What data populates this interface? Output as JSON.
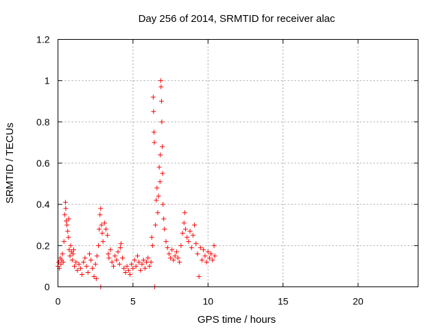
{
  "chart_data": {
    "type": "scatter",
    "title": "Day 256 of 2014, SRMTID for receiver alac",
    "xlabel": "GPS time / hours",
    "ylabel": "SRMTID / TECUs",
    "xlim": [
      0,
      24
    ],
    "ylim": [
      0,
      1.2
    ],
    "xticks": [
      0,
      5,
      10,
      15,
      20
    ],
    "xtick_labels": [
      "0",
      "5",
      "10",
      "15",
      "20"
    ],
    "yticks": [
      0,
      0.2,
      0.4,
      0.6,
      0.8,
      1.0,
      1.2
    ],
    "ytick_labels": [
      "0",
      "0.2",
      "0.4",
      "0.6",
      "0.8",
      "1",
      "1.2"
    ],
    "grid": true,
    "marker": "+",
    "color": "#ff0000",
    "series": [
      {
        "name": "SRMTID",
        "points": [
          [
            0.0,
            0.1
          ],
          [
            0.05,
            0.12
          ],
          [
            0.1,
            0.09
          ],
          [
            0.15,
            0.14
          ],
          [
            0.2,
            0.11
          ],
          [
            0.25,
            0.13
          ],
          [
            0.3,
            0.16
          ],
          [
            0.35,
            0.12
          ],
          [
            0.4,
            0.22
          ],
          [
            0.45,
            0.35
          ],
          [
            0.5,
            0.41
          ],
          [
            0.52,
            0.38
          ],
          [
            0.55,
            0.32
          ],
          [
            0.6,
            0.3
          ],
          [
            0.65,
            0.27
          ],
          [
            0.7,
            0.24
          ],
          [
            0.72,
            0.33
          ],
          [
            0.75,
            0.18
          ],
          [
            0.8,
            0.15
          ],
          [
            0.85,
            0.2
          ],
          [
            0.9,
            0.17
          ],
          [
            0.95,
            0.13
          ],
          [
            1.0,
            0.16
          ],
          [
            1.05,
            0.18
          ],
          [
            1.1,
            0.1
          ],
          [
            1.2,
            0.12
          ],
          [
            1.3,
            0.08
          ],
          [
            1.4,
            0.11
          ],
          [
            1.5,
            0.09
          ],
          [
            1.6,
            0.06
          ],
          [
            1.7,
            0.12
          ],
          [
            1.8,
            0.14
          ],
          [
            1.9,
            0.1
          ],
          [
            2.0,
            0.07
          ],
          [
            2.1,
            0.16
          ],
          [
            2.2,
            0.13
          ],
          [
            2.3,
            0.09
          ],
          [
            2.4,
            0.05
          ],
          [
            2.5,
            0.11
          ],
          [
            2.55,
            0.04
          ],
          [
            2.6,
            0.15
          ],
          [
            2.7,
            0.2
          ],
          [
            2.75,
            0.28
          ],
          [
            2.8,
            0.35
          ],
          [
            2.85,
            0.38
          ],
          [
            2.9,
            0.3
          ],
          [
            2.95,
            0.26
          ],
          [
            2.85,
            0.0
          ],
          [
            3.0,
            0.22
          ],
          [
            3.1,
            0.31
          ],
          [
            3.2,
            0.28
          ],
          [
            3.3,
            0.25
          ],
          [
            3.35,
            0.16
          ],
          [
            3.4,
            0.14
          ],
          [
            3.5,
            0.18
          ],
          [
            3.6,
            0.12
          ],
          [
            3.7,
            0.1
          ],
          [
            3.8,
            0.15
          ],
          [
            3.9,
            0.13
          ],
          [
            4.0,
            0.17
          ],
          [
            4.1,
            0.11
          ],
          [
            4.15,
            0.19
          ],
          [
            4.2,
            0.21
          ],
          [
            4.3,
            0.14
          ],
          [
            4.4,
            0.09
          ],
          [
            4.5,
            0.07
          ],
          [
            4.6,
            0.1
          ],
          [
            4.7,
            0.08
          ],
          [
            4.8,
            0.06
          ],
          [
            4.9,
            0.11
          ],
          [
            5.0,
            0.09
          ],
          [
            5.1,
            0.13
          ],
          [
            5.2,
            0.1
          ],
          [
            5.3,
            0.15
          ],
          [
            5.4,
            0.12
          ],
          [
            5.5,
            0.08
          ],
          [
            5.6,
            0.11
          ],
          [
            5.7,
            0.13
          ],
          [
            5.8,
            0.09
          ],
          [
            5.9,
            0.12
          ],
          [
            6.0,
            0.14
          ],
          [
            6.1,
            0.1
          ],
          [
            6.2,
            0.12
          ],
          [
            6.25,
            0.24
          ],
          [
            6.3,
            0.2
          ],
          [
            6.35,
            0.92
          ],
          [
            6.37,
            0.85
          ],
          [
            6.4,
            0.75
          ],
          [
            6.42,
            0.7
          ],
          [
            6.45,
            0.0
          ],
          [
            6.5,
            0.3
          ],
          [
            6.55,
            0.42
          ],
          [
            6.6,
            0.48
          ],
          [
            6.65,
            0.36
          ],
          [
            6.7,
            0.44
          ],
          [
            6.75,
            0.58
          ],
          [
            6.8,
            0.51
          ],
          [
            6.82,
            0.64
          ],
          [
            6.85,
            1.0
          ],
          [
            6.87,
            0.97
          ],
          [
            6.9,
            0.9
          ],
          [
            6.92,
            0.8
          ],
          [
            6.95,
            0.68
          ],
          [
            6.97,
            0.55
          ],
          [
            7.0,
            0.4
          ],
          [
            7.05,
            0.33
          ],
          [
            7.1,
            0.28
          ],
          [
            7.2,
            0.22
          ],
          [
            7.3,
            0.19
          ],
          [
            7.4,
            0.16
          ],
          [
            7.5,
            0.14
          ],
          [
            7.6,
            0.18
          ],
          [
            7.7,
            0.13
          ],
          [
            7.8,
            0.15
          ],
          [
            7.9,
            0.17
          ],
          [
            8.0,
            0.14
          ],
          [
            8.1,
            0.12
          ],
          [
            8.2,
            0.2
          ],
          [
            8.3,
            0.26
          ],
          [
            8.4,
            0.31
          ],
          [
            8.45,
            0.36
          ],
          [
            8.5,
            0.28
          ],
          [
            8.6,
            0.24
          ],
          [
            8.7,
            0.22
          ],
          [
            8.8,
            0.27
          ],
          [
            8.9,
            0.19
          ],
          [
            9.0,
            0.25
          ],
          [
            9.1,
            0.3
          ],
          [
            9.2,
            0.21
          ],
          [
            9.3,
            0.16
          ],
          [
            9.4,
            0.05
          ],
          [
            9.5,
            0.19
          ],
          [
            9.6,
            0.13
          ],
          [
            9.7,
            0.18
          ],
          [
            9.8,
            0.15
          ],
          [
            9.9,
            0.12
          ],
          [
            10.0,
            0.17
          ],
          [
            10.1,
            0.14
          ],
          [
            10.2,
            0.16
          ],
          [
            10.3,
            0.13
          ],
          [
            10.4,
            0.2
          ],
          [
            10.45,
            0.15
          ]
        ]
      }
    ]
  }
}
